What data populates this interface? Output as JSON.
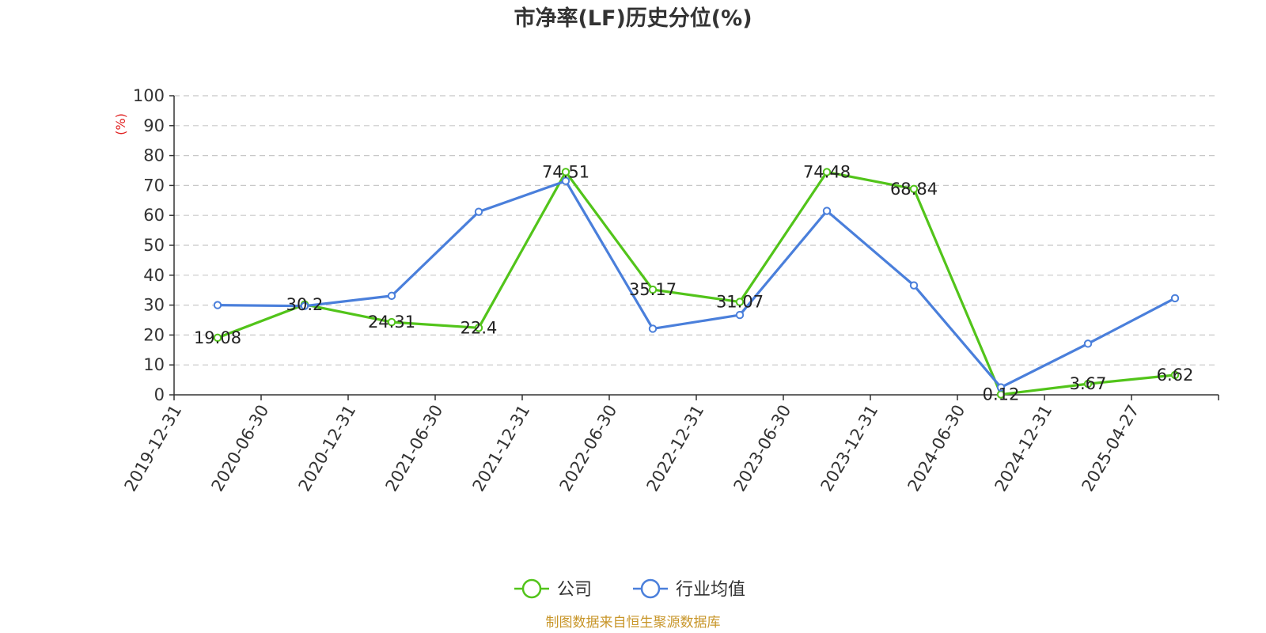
{
  "chart_data": {
    "type": "line",
    "title": "市净率(LF)历史分位(%)",
    "ylabel": "(%)",
    "ylim": [
      0,
      100
    ],
    "yticks": [
      "0",
      "10",
      "20",
      "30",
      "40",
      "50",
      "60",
      "70",
      "80",
      "90",
      "100"
    ],
    "grid": true,
    "legend_position": "bottom-center",
    "categories": [
      "2019-12-31",
      "2020-06-30",
      "2020-12-31",
      "2021-06-30",
      "2021-12-31",
      "2022-06-30",
      "2022-12-31",
      "2023-06-30",
      "2023-12-31",
      "2024-06-30",
      "2024-12-31",
      "2025-04-27"
    ],
    "series": [
      {
        "name": "公司",
        "color": "#52c41a",
        "values": [
          19.08,
          30.2,
          24.31,
          22.4,
          74.51,
          35.17,
          31.07,
          74.48,
          68.84,
          0.12,
          3.67,
          6.62
        ],
        "labels": [
          "19.08",
          "30.2",
          "24.31",
          "22.4",
          "74.51",
          "35.17",
          "31.07",
          "74.48",
          "68.84",
          "0.12",
          "3.67",
          "6.62"
        ]
      },
      {
        "name": "行业均值",
        "color": "#4a7fdb",
        "values": [
          30.0,
          29.7,
          33.1,
          61.2,
          71.5,
          22.1,
          26.7,
          61.5,
          36.6,
          2.5,
          17.1,
          32.3
        ]
      }
    ]
  },
  "footer": {
    "source": "制图数据来自恒生聚源数据库"
  }
}
